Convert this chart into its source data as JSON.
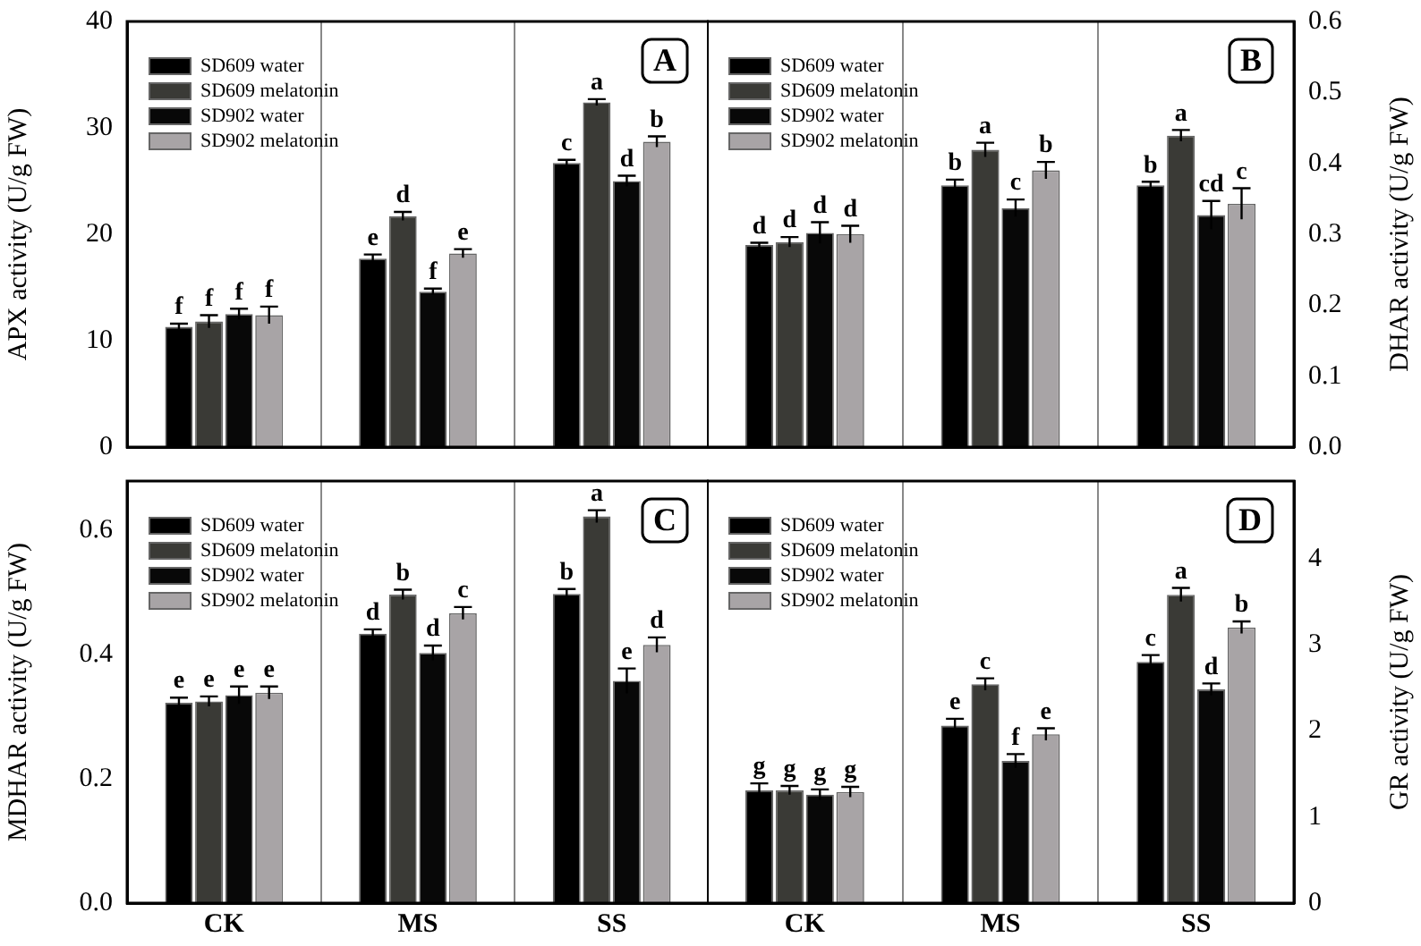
{
  "chart_data": [
    {
      "type": "bar",
      "title": "A",
      "ylabel": "APX activity (U/g FW)",
      "categories": [
        null,
        null,
        null
      ],
      "ylim": [
        0,
        40
      ],
      "yticks": [
        0,
        10,
        20,
        30,
        40
      ],
      "grid": "x",
      "legend": "top left",
      "tick_labels": "y",
      "series": [
        {
          "name": "SD609 water",
          "color": "#000000",
          "values": [
            11.3,
            17.7,
            26.7
          ],
          "errors": [
            0.3,
            0.4,
            0.3
          ],
          "value_labels": [
            "f",
            "e",
            "c"
          ]
        },
        {
          "name": "SD609 melatonin",
          "color": "#3a3a36",
          "values": [
            11.8,
            21.7,
            32.4
          ],
          "errors": [
            0.6,
            0.4,
            0.3
          ],
          "value_labels": [
            "f",
            "d",
            "a"
          ]
        },
        {
          "name": "SD902 water",
          "color": "#080808",
          "values": [
            12.5,
            14.6,
            25.0
          ],
          "errors": [
            0.5,
            0.3,
            0.5
          ],
          "value_labels": [
            "f",
            "f",
            "d"
          ]
        },
        {
          "name": "SD902 melatonin",
          "color": "#a8a4a6",
          "values": [
            12.4,
            18.2,
            28.7
          ],
          "errors": [
            0.8,
            0.4,
            0.5
          ],
          "value_labels": [
            "f",
            "e",
            "b"
          ]
        }
      ]
    },
    {
      "type": "bar",
      "title": "B",
      "ylabel": "DHAR activity (U/g FW)",
      "categories": [
        null,
        null,
        null
      ],
      "ylim": [
        0,
        0.6
      ],
      "yticks": [
        {
          "value": 0,
          "label": "0.0"
        },
        0.1,
        0.2,
        0.3,
        0.4,
        0.5,
        0.6
      ],
      "grid": "x",
      "legend": "top left",
      "tick_labels": "y",
      "series": [
        {
          "name": "SD609 water",
          "color": "#000000",
          "values": [
            0.285,
            0.369,
            0.369
          ],
          "errors": [
            0.003,
            0.008,
            0.005
          ],
          "value_labels": [
            "d",
            "b",
            "b"
          ]
        },
        {
          "name": "SD609 melatonin",
          "color": "#3a3a36",
          "values": [
            0.289,
            0.419,
            0.439
          ],
          "errors": [
            0.007,
            0.01,
            0.008
          ],
          "value_labels": [
            "d",
            "a",
            "a"
          ]
        },
        {
          "name": "SD902 water",
          "color": "#080808",
          "values": [
            0.302,
            0.337,
            0.327
          ],
          "errors": [
            0.015,
            0.012,
            0.02
          ],
          "value_labels": [
            "d",
            "c",
            "cd"
          ]
        },
        {
          "name": "SD902 melatonin",
          "color": "#a8a4a6",
          "values": [
            0.3,
            0.39,
            0.343
          ],
          "errors": [
            0.012,
            0.012,
            0.022
          ],
          "value_labels": [
            "d",
            "b",
            "c"
          ]
        }
      ]
    },
    {
      "type": "bar",
      "title": "C",
      "ylabel": "MDHAR activity (U/g FW)",
      "categories": [
        "CK",
        "MS",
        "SS"
      ],
      "ylim": [
        0,
        0.68
      ],
      "yticks": [
        {
          "value": 0,
          "label": "0.0"
        },
        0.2,
        0.4,
        0.6
      ],
      "grid": "x",
      "legend": "top left",
      "series": [
        {
          "name": "SD609 water",
          "color": "#000000",
          "values": [
            0.323,
            0.434,
            0.498
          ],
          "errors": [
            0.008,
            0.007,
            0.008
          ],
          "value_labels": [
            "e",
            "d",
            "b"
          ]
        },
        {
          "name": "SD609 melatonin",
          "color": "#3a3a36",
          "values": [
            0.325,
            0.497,
            0.623
          ],
          "errors": [
            0.008,
            0.008,
            0.01
          ],
          "value_labels": [
            "e",
            "b",
            "a"
          ]
        },
        {
          "name": "SD902 water",
          "color": "#080808",
          "values": [
            0.335,
            0.403,
            0.358
          ],
          "errors": [
            0.014,
            0.012,
            0.02
          ],
          "value_labels": [
            "e",
            "d",
            "e"
          ]
        },
        {
          "name": "SD902 melatonin",
          "color": "#a8a4a6",
          "values": [
            0.339,
            0.467,
            0.416
          ],
          "errors": [
            0.01,
            0.01,
            0.012
          ],
          "value_labels": [
            "e",
            "c",
            "d"
          ]
        }
      ]
    },
    {
      "type": "bar",
      "title": "D",
      "ylabel": "GR activity (U/g FW)",
      "categories": [
        "CK",
        "MS",
        "SS"
      ],
      "ylim": [
        0,
        4.9
      ],
      "yticks": [
        0,
        1,
        2,
        3,
        4
      ],
      "grid": "x",
      "legend": "top left",
      "series": [
        {
          "name": "SD609 water",
          "color": "#000000",
          "values": [
            1.31,
            2.06,
            2.8
          ],
          "errors": [
            0.08,
            0.08,
            0.08
          ],
          "value_labels": [
            "g",
            "e",
            "c"
          ]
        },
        {
          "name": "SD609 melatonin",
          "color": "#3a3a36",
          "values": [
            1.31,
            2.54,
            3.58
          ],
          "errors": [
            0.05,
            0.07,
            0.08
          ],
          "value_labels": [
            "g",
            "c",
            "a"
          ]
        },
        {
          "name": "SD902 water",
          "color": "#080808",
          "values": [
            1.26,
            1.65,
            2.48
          ],
          "errors": [
            0.06,
            0.08,
            0.07
          ],
          "value_labels": [
            "g",
            "f",
            "d"
          ]
        },
        {
          "name": "SD902 melatonin",
          "color": "#a8a4a6",
          "values": [
            1.29,
            1.96,
            3.2
          ],
          "errors": [
            0.06,
            0.07,
            0.07
          ],
          "value_labels": [
            "g",
            "e",
            "b"
          ]
        }
      ]
    }
  ]
}
